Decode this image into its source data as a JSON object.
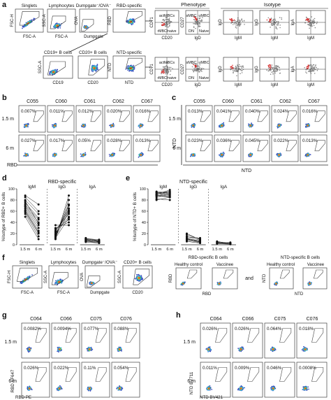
{
  "panel_a": {
    "letter": "a",
    "gates_row1": [
      {
        "title": "Singlets",
        "xlabel": "FSC-A",
        "ylabel": "FSC-H"
      },
      {
        "title": "Lymphocytes",
        "xlabel": "FSC-A",
        "ylabel": "SSC-A"
      },
      {
        "title": "Dumpgate⁻/OVA⁻",
        "xlabel": "Dumpgate",
        "ylabel": "OVA"
      },
      {
        "title": "RBD-specific",
        "xlabel": "",
        "ylabel": "RBD"
      }
    ],
    "gates_row2": [
      {
        "title": "CD19+ B cells",
        "xlabel": "CD19",
        "ylabel": "SSC-A"
      },
      {
        "title": "CD20+ B cells",
        "xlabel": "CD20",
        "ylabel": ""
      },
      {
        "title": "NTD-specific",
        "xlabel": "NTD",
        "ylabel": "NTD"
      }
    ],
    "phenotype_header": "Phenotype",
    "isotype_header": "Isotype",
    "phenotype_plots": [
      {
        "xlabel": "CD20",
        "ylabel": "CD71",
        "q1": "actMBCs",
        "q2": "rMBC/naive"
      },
      {
        "xlabel": "IgD",
        "ylabel": "CD27",
        "q1": "sMBC",
        "q2": "uMBC",
        "q3": "DN",
        "q4": "Naive"
      }
    ],
    "isotype_plots": [
      {
        "xlabel": "IgM",
        "ylabel": "IgD"
      },
      {
        "xlabel": "IgM",
        "ylabel": "IgG"
      },
      {
        "xlabel": "IgM",
        "ylabel": "IgA"
      }
    ]
  },
  "panel_b": {
    "letter": "b",
    "samples": [
      "C055",
      "C060",
      "C061",
      "C062",
      "C067"
    ],
    "rows": [
      {
        "label": "1.5 m",
        "values": [
          "0.007%",
          "0.011%",
          "0.012%",
          "0.020%",
          "0.016%"
        ]
      },
      {
        "label": "6 m",
        "values": [
          "0.027%",
          "0.017%",
          "0.05%",
          "0.028%",
          "0.013%"
        ]
      }
    ],
    "xlabel": "RBD"
  },
  "panel_c": {
    "letter": "c",
    "samples": [
      "C055",
      "C060",
      "C061",
      "C062",
      "C067"
    ],
    "rows": [
      {
        "label": "1.5 m",
        "values": [
          "0.013%",
          "0.041%",
          "0.040%",
          "0.024%",
          "0.016%"
        ]
      },
      {
        "label": "6 m",
        "values": [
          "0.023%",
          "0.036%",
          "0.045%",
          "0.022%",
          "0.013%"
        ]
      }
    ],
    "xlabel": "NTD",
    "ylabel": "NTD"
  },
  "panel_d": {
    "letter": "d",
    "title": "RBD-specific",
    "ylabel": "%Isotype of RBD+ B cells",
    "groups": [
      "IgM",
      "IgG",
      "IgA"
    ],
    "timepoints": [
      "1.5 m",
      "6 m"
    ]
  },
  "panel_e": {
    "letter": "e",
    "title": "NTD-specific",
    "ylabel": "%Isotype of NTD+ B cells",
    "groups": [
      "IgM",
      "IgG",
      "IgA"
    ],
    "timepoints": [
      "1.5 m",
      "6 m"
    ]
  },
  "panel_f": {
    "letter": "f",
    "gates": [
      {
        "title": "Singlets",
        "xlabel": "FSC-A",
        "ylabel": "FSC-H"
      },
      {
        "title": "Lymphocytes",
        "xlabel": "FSC-A",
        "ylabel": "SSC-A"
      },
      {
        "title": "Dumpgate⁻/OVA⁻",
        "xlabel": "Dumpgate",
        "ylabel": "OVA"
      },
      {
        "title": "CD20+ B cells",
        "xlabel": "CD20",
        "ylabel": "SSC-A"
      }
    ],
    "rbd_header": "RBD-specific B cells",
    "ntd_header": "NTD-specific B cells",
    "healthy": "Healthy control",
    "vaccinee": "Vaccinee",
    "and": "and",
    "rbd_axis": "RBD",
    "ntd_axis": "NTD"
  },
  "panel_g": {
    "letter": "g",
    "samples": [
      "C064",
      "C066",
      "C075",
      "C076"
    ],
    "rows": [
      {
        "label": "1.5 m",
        "values": [
          "0.0082%",
          "0.0094%",
          "0.077%",
          "0.088%"
        ]
      },
      {
        "label": "6 m",
        "values": [
          "0.026%",
          "0.022%",
          "0.11%",
          "0.054%"
        ]
      }
    ],
    "xlabel": "RBD PE",
    "ylabel": "RBD AF647"
  },
  "panel_h": {
    "letter": "h",
    "samples": [
      "C064",
      "C066",
      "C075",
      "C076"
    ],
    "rows": [
      {
        "label": "1.5 m",
        "values": [
          "0.026%",
          "0.026%",
          "0.064%",
          "0.018%"
        ]
      },
      {
        "label": "6 m",
        "values": [
          "0.011%",
          "0.009%",
          "0.046%",
          "0.0008%"
        ]
      }
    ],
    "xlabel": "NTD BV421",
    "ylabel": "NTD BV711"
  },
  "chart_data": [
    {
      "type": "line",
      "title": "RBD-specific",
      "ylabel": "%Isotype of RBD+ B cells",
      "ylim": [
        0,
        100
      ],
      "yticks": [
        0,
        20,
        40,
        60,
        80,
        100
      ],
      "x": [
        "1.5 m",
        "6 m"
      ],
      "groups": [
        {
          "name": "IgM",
          "pairs": [
            [
              88,
              72
            ],
            [
              85,
              60
            ],
            [
              80,
              55
            ],
            [
              75,
              48
            ],
            [
              72,
              45
            ],
            [
              70,
              40
            ],
            [
              68,
              35
            ],
            [
              65,
              30
            ],
            [
              62,
              25
            ],
            [
              58,
              20
            ],
            [
              55,
              15
            ],
            [
              50,
              10
            ],
            [
              60,
              22
            ],
            [
              78,
              38
            ]
          ]
        },
        {
          "name": "IgG",
          "pairs": [
            [
              10,
              88
            ],
            [
              12,
              80
            ],
            [
              15,
              72
            ],
            [
              18,
              65
            ],
            [
              20,
              60
            ],
            [
              25,
              55
            ],
            [
              22,
              50
            ],
            [
              28,
              45
            ],
            [
              30,
              40
            ],
            [
              35,
              35
            ],
            [
              14,
              58
            ],
            [
              17,
              70
            ],
            [
              24,
              62
            ],
            [
              12,
              48
            ]
          ]
        },
        {
          "name": "IgA",
          "pairs": [
            [
              8,
              6
            ],
            [
              10,
              8
            ],
            [
              12,
              5
            ],
            [
              6,
              4
            ],
            [
              9,
              7
            ],
            [
              11,
              9
            ],
            [
              5,
              3
            ],
            [
              7,
              5
            ]
          ]
        }
      ]
    },
    {
      "type": "line",
      "title": "NTD-specific",
      "ylabel": "%Isotype of NTD+ B cells",
      "ylim": [
        0,
        100
      ],
      "yticks": [
        0,
        20,
        40,
        60,
        80,
        100
      ],
      "x": [
        "1.5 m",
        "6 m"
      ],
      "groups": [
        {
          "name": "IgM",
          "pairs": [
            [
              95,
              92
            ],
            [
              92,
              88
            ],
            [
              90,
              95
            ],
            [
              88,
              85
            ],
            [
              85,
              90
            ],
            [
              82,
              80
            ],
            [
              90,
              98
            ],
            [
              94,
              90
            ],
            [
              87,
              93
            ],
            [
              80,
              85
            ],
            [
              93,
              95
            ],
            [
              89,
              86
            ]
          ]
        },
        {
          "name": "IgG",
          "pairs": [
            [
              18,
              10
            ],
            [
              15,
              8
            ],
            [
              12,
              6
            ],
            [
              10,
              5
            ],
            [
              8,
              4
            ],
            [
              14,
              12
            ],
            [
              6,
              3
            ],
            [
              20,
              9
            ],
            [
              9,
              7
            ],
            [
              11,
              5
            ]
          ]
        },
        {
          "name": "IgA",
          "pairs": [
            [
              4,
              2
            ],
            [
              3,
              2
            ],
            [
              5,
              3
            ],
            [
              2,
              1
            ],
            [
              6,
              2
            ],
            [
              3,
              4
            ]
          ]
        }
      ]
    }
  ]
}
